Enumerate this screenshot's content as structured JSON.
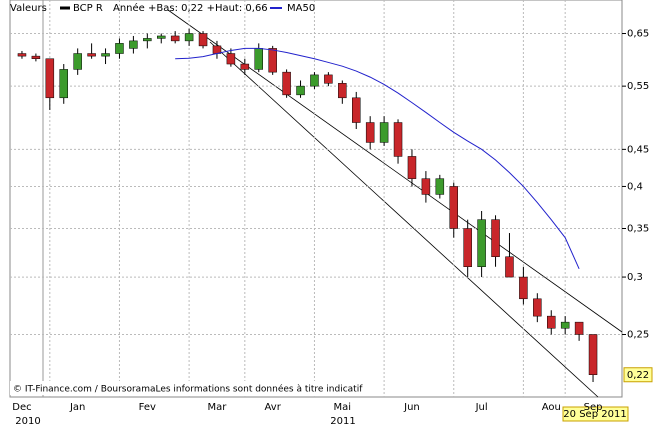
{
  "chart_data": {
    "type": "candlestick",
    "panel_label": "Valeurs",
    "annotation": "Année +Bas: 0,22 +Haut: 0,66",
    "footer": "© IT-Finance.com / BoursoramaLes informations sont données à titre indicatif",
    "date_badge": "20 Sep 2011",
    "year_labels": [
      "2010",
      "2011"
    ],
    "last_value": {
      "value": 0.22,
      "label": "0,22"
    },
    "log_scale": true,
    "grid": true,
    "categories": [
      "Dec",
      null,
      null,
      null,
      "Jan",
      null,
      null,
      null,
      null,
      "Fev",
      null,
      null,
      null,
      null,
      "Mar",
      null,
      null,
      null,
      "Avr",
      null,
      null,
      null,
      null,
      "Mai",
      null,
      null,
      null,
      null,
      "Jun",
      null,
      null,
      null,
      null,
      "Jul",
      null,
      null,
      null,
      null,
      "Aou",
      null,
      null,
      "Sep"
    ],
    "ylim": [
      0.205,
      0.723
    ],
    "yticks": [
      {
        "value": 0.25,
        "label": "0,25"
      },
      {
        "value": 0.3,
        "label": "0,3"
      },
      {
        "value": 0.35,
        "label": "0,35"
      },
      {
        "value": 0.4,
        "label": "0,4"
      },
      {
        "value": 0.45,
        "label": "0,45"
      },
      {
        "value": 0.55,
        "label": "0,55"
      },
      {
        "value": 0.65,
        "label": "0,65"
      }
    ],
    "series": [
      {
        "name": "BCP R",
        "color": "#000000",
        "up_color": "#3c9b2c",
        "down_color": "#c8262a",
        "open": [
          0.61,
          0.605,
          0.6,
          0.53,
          0.58,
          0.61,
          0.605,
          0.61,
          0.62,
          0.635,
          0.64,
          0.645,
          0.635,
          0.65,
          0.625,
          0.61,
          0.59,
          0.58,
          0.62,
          0.575,
          0.535,
          0.55,
          0.57,
          0.555,
          0.53,
          0.49,
          0.46,
          0.49,
          0.44,
          0.41,
          0.39,
          0.4,
          0.35,
          0.31,
          0.36,
          0.32,
          0.3,
          0.28,
          0.265,
          0.255,
          0.26,
          0.25
        ],
        "high": [
          0.615,
          0.61,
          0.6,
          0.59,
          0.62,
          0.63,
          0.62,
          0.64,
          0.645,
          0.65,
          0.65,
          0.655,
          0.66,
          0.655,
          0.635,
          0.62,
          0.6,
          0.63,
          0.625,
          0.58,
          0.56,
          0.575,
          0.575,
          0.56,
          0.54,
          0.5,
          0.5,
          0.495,
          0.45,
          0.42,
          0.415,
          0.405,
          0.36,
          0.37,
          0.365,
          0.345,
          0.31,
          0.285,
          0.27,
          0.265,
          0.26,
          0.25
        ],
        "low": [
          0.6,
          0.595,
          0.51,
          0.52,
          0.57,
          0.6,
          0.59,
          0.6,
          0.61,
          0.62,
          0.63,
          0.63,
          0.625,
          0.62,
          0.6,
          0.585,
          0.57,
          0.575,
          0.57,
          0.53,
          0.53,
          0.545,
          0.55,
          0.52,
          0.48,
          0.45,
          0.455,
          0.43,
          0.4,
          0.38,
          0.385,
          0.34,
          0.3,
          0.3,
          0.31,
          0.3,
          0.275,
          0.26,
          0.25,
          0.25,
          0.245,
          0.215
        ],
        "close": [
          0.605,
          0.6,
          0.53,
          0.58,
          0.61,
          0.605,
          0.61,
          0.63,
          0.635,
          0.64,
          0.645,
          0.635,
          0.65,
          0.625,
          0.61,
          0.59,
          0.58,
          0.62,
          0.575,
          0.535,
          0.55,
          0.57,
          0.555,
          0.53,
          0.49,
          0.46,
          0.49,
          0.44,
          0.41,
          0.39,
          0.41,
          0.35,
          0.31,
          0.36,
          0.32,
          0.3,
          0.28,
          0.265,
          0.255,
          0.26,
          0.25,
          0.22
        ]
      },
      {
        "name": "MA50",
        "color": "#2222cc",
        "values": [
          null,
          null,
          null,
          null,
          null,
          null,
          null,
          null,
          null,
          null,
          null,
          0.6,
          0.601,
          0.604,
          0.61,
          0.616,
          0.62,
          0.62,
          0.617,
          0.612,
          0.606,
          0.6,
          0.593,
          0.586,
          0.577,
          0.566,
          0.553,
          0.538,
          0.522,
          0.506,
          0.49,
          0.475,
          0.462,
          0.45,
          0.435,
          0.418,
          0.4,
          0.38,
          0.36,
          0.34,
          0.308,
          null
        ]
      }
    ]
  }
}
